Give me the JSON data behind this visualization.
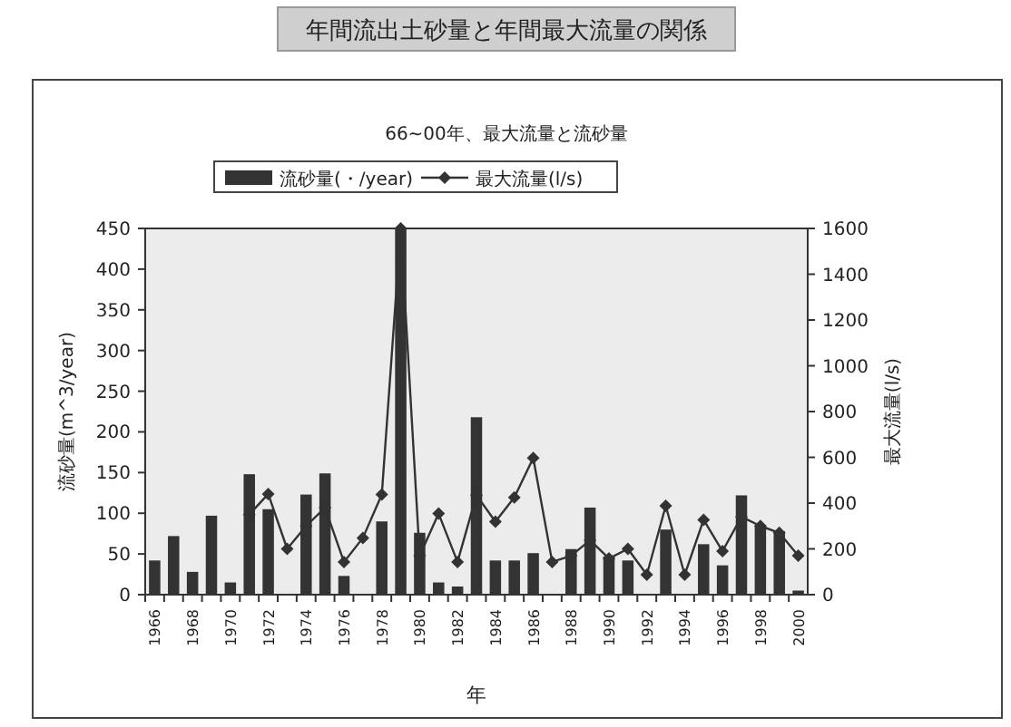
{
  "chart_data": {
    "type": "bar",
    "title": "年間流出土砂量と年間最大流量の関係",
    "subtitle": "66~00年、最大流量と流砂量",
    "xlabel": "年",
    "ylabel": "流砂量(m^3/year)",
    "y2label": "最大流量(l/s)",
    "categories": [
      "1966",
      null,
      "1968",
      null,
      "1970",
      null,
      "1972",
      null,
      "1974",
      null,
      "1976",
      null,
      "1978",
      null,
      "1980",
      null,
      "1982",
      null,
      "1984",
      null,
      "1986",
      null,
      "1988",
      null,
      "1990",
      null,
      "1992",
      null,
      "1994",
      null,
      "1996",
      null,
      "1998",
      null,
      "2000"
    ],
    "series": [
      {
        "name": "流砂量(・/year)",
        "color": "#333333",
        "values": [
          42,
          72,
          28,
          97,
          15,
          148,
          105,
          null,
          123,
          149,
          23,
          null,
          90,
          450,
          76,
          15,
          10,
          218,
          42,
          42,
          51,
          null,
          56,
          107,
          47,
          42,
          null,
          80,
          null,
          62,
          36,
          122,
          85,
          78,
          5
        ]
      },
      {
        "name": "最大流量(l/s)",
        "type": "line",
        "axis": "y2",
        "color": "#333333",
        "marker": "diamond",
        "values": [
          null,
          null,
          null,
          null,
          null,
          350,
          440,
          200,
          300,
          380,
          143,
          248,
          438,
          1600,
          170,
          354,
          143,
          435,
          319,
          425,
          597,
          143,
          170,
          238,
          158,
          200,
          87,
          388,
          87,
          327,
          190,
          340,
          300,
          270,
          170
        ]
      }
    ],
    "ylim": [
      0,
      450
    ],
    "yticks": [
      0,
      50,
      100,
      150,
      200,
      250,
      300,
      350,
      400,
      450
    ],
    "y2lim": [
      0,
      1600
    ],
    "y2ticks": [
      0,
      200,
      400,
      600,
      800,
      1000,
      1200,
      1400,
      1600
    ],
    "grid": false,
    "legend": "top"
  }
}
